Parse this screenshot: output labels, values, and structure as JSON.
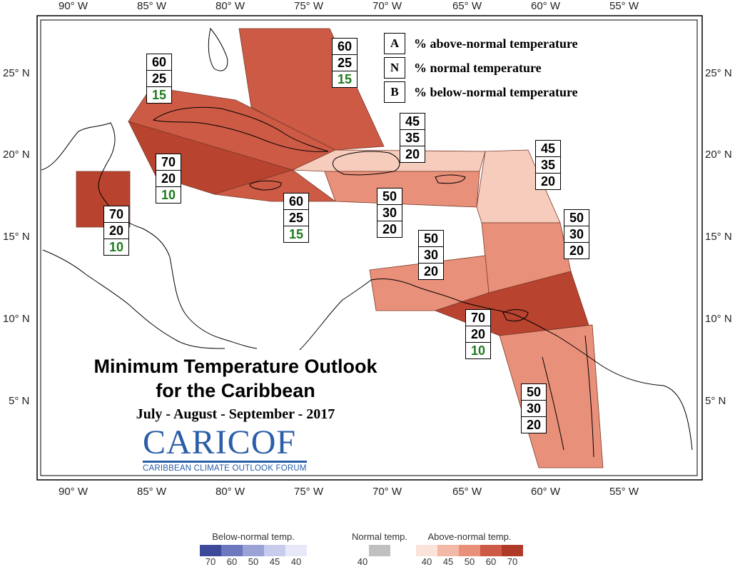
{
  "map": {
    "title_line1": "Minimum Temperature Outlook",
    "title_line2": "for the Caribbean",
    "title_line3": "July - August - September - 2017",
    "logo": {
      "name_main": "CARICOF",
      "tagline": "CARIBBEAN CLIMATE OUTLOOK FORUM",
      "color": "#2a5ea8"
    },
    "longitude_labels": [
      "90° W",
      "85° W",
      "80° W",
      "75° W",
      "70° W",
      "65° W",
      "60° W",
      "55° W"
    ],
    "latitude_labels": [
      "25° N",
      "20° N",
      "15° N",
      "10° N",
      "5° N"
    ],
    "key": [
      {
        "letter": "A",
        "text": "% above-normal temperature"
      },
      {
        "letter": "N",
        "text": "% normal temperature"
      },
      {
        "letter": "B",
        "text": "% below-normal temperature"
      }
    ],
    "regions": [
      {
        "name": "bahamas",
        "above": "60",
        "normal": "25",
        "below": "15",
        "color": "#cd5a44"
      },
      {
        "name": "cuba",
        "above": "60",
        "normal": "25",
        "below": "15",
        "color": "#cd5a44"
      },
      {
        "name": "cayman",
        "above": "70",
        "normal": "20",
        "below": "10",
        "color": "#b8432f"
      },
      {
        "name": "belize",
        "above": "70",
        "normal": "20",
        "below": "10",
        "color": "#b8432f"
      },
      {
        "name": "jamaica",
        "above": "60",
        "normal": "25",
        "below": "15",
        "color": "#cd5a44"
      },
      {
        "name": "hispaniola-north",
        "above": "45",
        "normal": "35",
        "below": "20",
        "color": "#f6cdbd"
      },
      {
        "name": "hispaniola-south",
        "above": "50",
        "normal": "30",
        "below": "20",
        "color": "#e9907a"
      },
      {
        "name": "northern-lesser-antilles",
        "above": "45",
        "normal": "35",
        "below": "20",
        "color": "#f6cdbd"
      },
      {
        "name": "windward-islands",
        "above": "50",
        "normal": "30",
        "below": "20",
        "color": "#e9907a"
      },
      {
        "name": "abc-islands",
        "above": "50",
        "normal": "30",
        "below": "20",
        "color": "#e9907a"
      },
      {
        "name": "trinidad",
        "above": "70",
        "normal": "20",
        "below": "10",
        "color": "#b8432f"
      },
      {
        "name": "guianas",
        "above": "50",
        "normal": "30",
        "below": "20",
        "color": "#e9907a"
      }
    ]
  },
  "colorbar": {
    "below": {
      "title": "Below-normal temp.",
      "ticks": [
        "70",
        "60",
        "50",
        "45",
        "40"
      ],
      "colors": [
        "#3d4a99",
        "#6d78bf",
        "#9aa2d6",
        "#c8ccec",
        "#e7e9f8"
      ]
    },
    "normal": {
      "title": "Normal temp.",
      "ticks": [
        "40"
      ],
      "colors": [
        "#c0c0c0"
      ]
    },
    "above": {
      "title": "Above-normal temp.",
      "ticks": [
        "40",
        "45",
        "50",
        "60",
        "70"
      ],
      "colors": [
        "#fbe3da",
        "#f4b9a6",
        "#e9907a",
        "#cd5a44",
        "#b03a28"
      ]
    }
  }
}
